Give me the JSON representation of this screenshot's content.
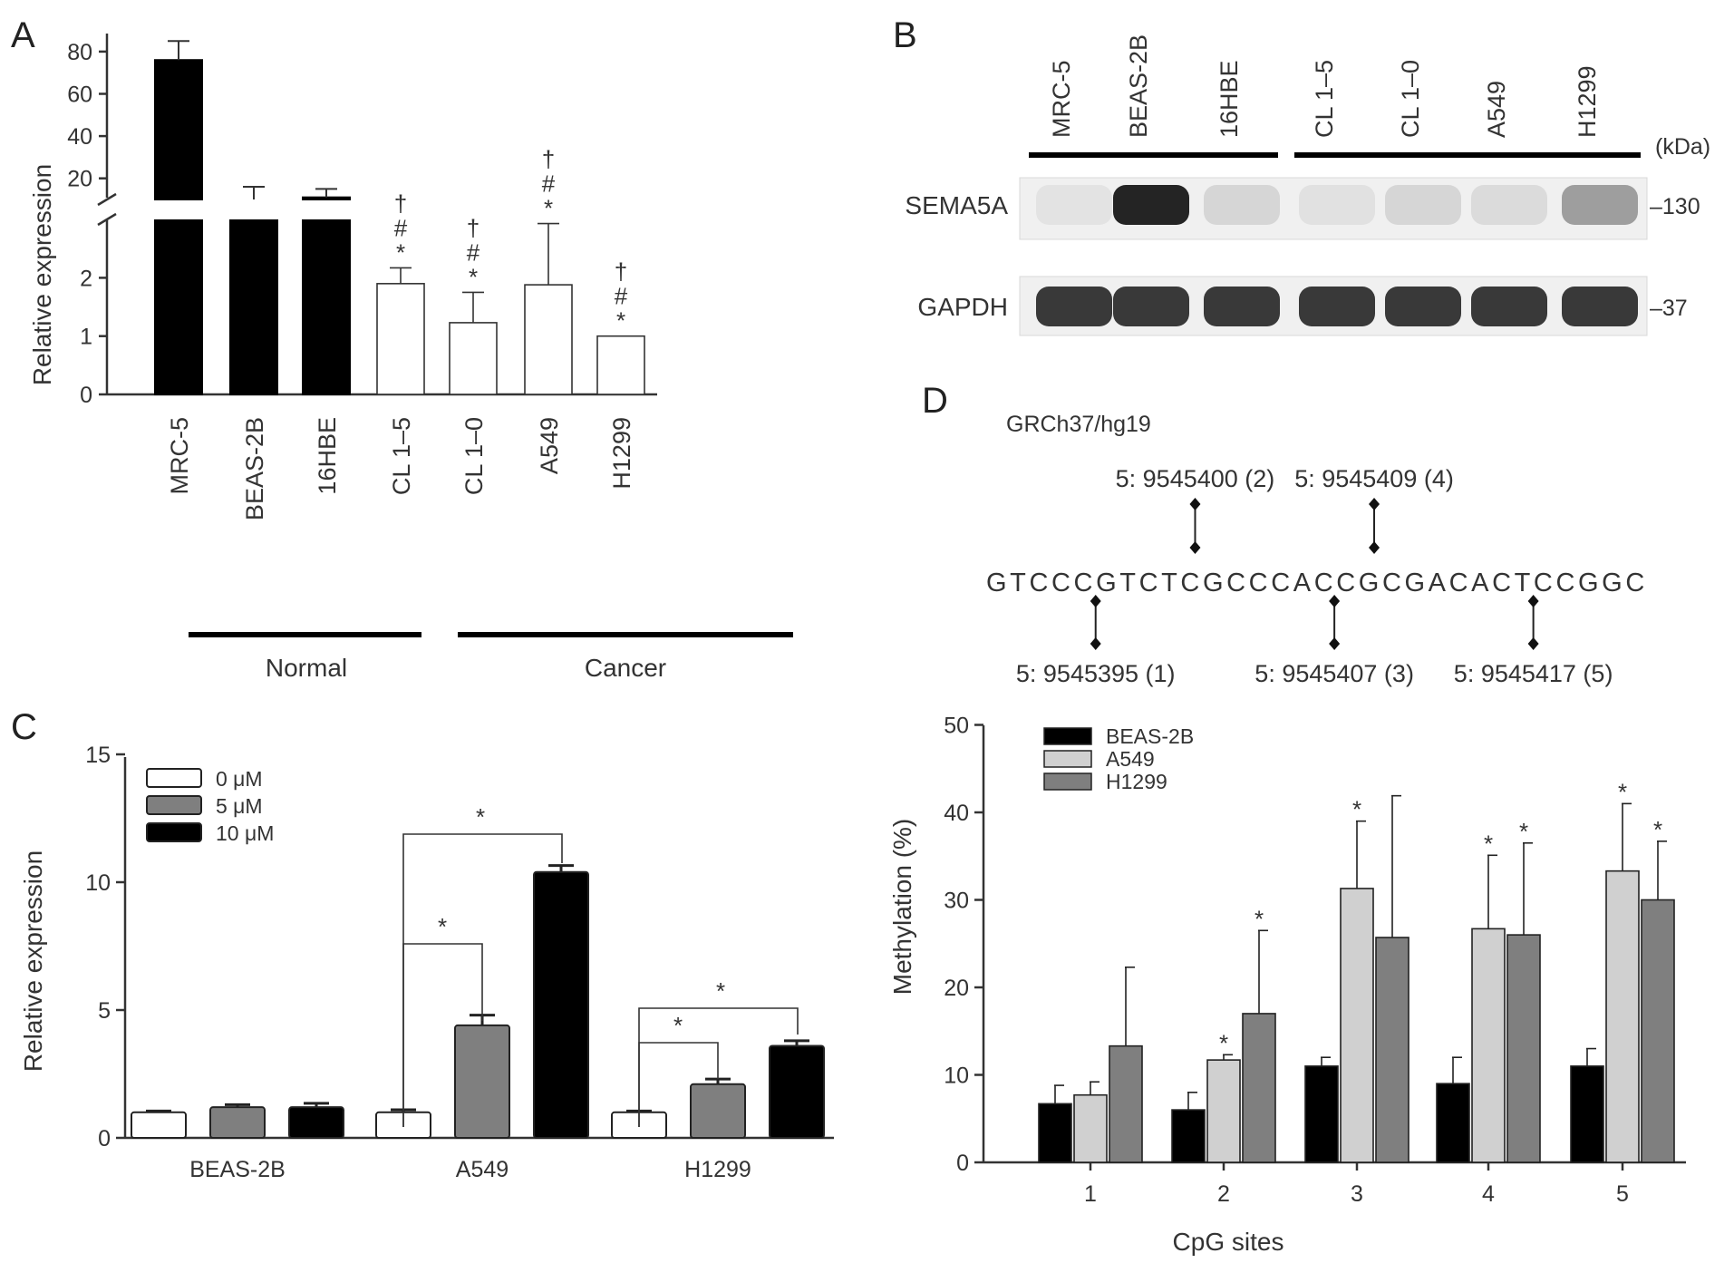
{
  "panels": {
    "A": {
      "letter": "A",
      "ylabel": "Relative expression",
      "upper_ticks": [
        "20",
        "40",
        "60",
        "80"
      ],
      "lower_ticks": [
        "0",
        "1",
        "2"
      ],
      "groups": [
        {
          "label": "Normal"
        },
        {
          "label": "Cancer"
        }
      ],
      "bars": [
        {
          "name": "MRC-5",
          "value": 76,
          "err": 9,
          "fill": "#000000",
          "marks": []
        },
        {
          "name": "BEAS-2B",
          "value": 10,
          "err": 6,
          "fill": "#000000",
          "marks": []
        },
        {
          "name": "16HBE",
          "value": 11,
          "err": 4,
          "fill": "#000000",
          "marks": []
        },
        {
          "name": "CL 1–5",
          "value": 1.9,
          "err": 0.27,
          "fill": "#ffffff",
          "marks": [
            "†",
            "#",
            "*"
          ]
        },
        {
          "name": "CL 1–0",
          "value": 1.23,
          "err": 0.52,
          "fill": "#ffffff",
          "marks": [
            "†",
            "#",
            "*"
          ]
        },
        {
          "name": "A549",
          "value": 1.88,
          "err": 1.05,
          "fill": "#ffffff",
          "marks": [
            "†",
            "#",
            "*"
          ]
        },
        {
          "name": "H1299",
          "value": 1.0,
          "err": 0,
          "fill": "#ffffff",
          "marks": [
            "†",
            "#",
            "*"
          ]
        }
      ]
    },
    "B": {
      "letter": "B",
      "lanes": [
        "MRC-5",
        "BEAS-2B",
        "16HBE",
        "CL 1–5",
        "CL 1–0",
        "A549",
        "H1299"
      ],
      "kda_label": "(kDa)",
      "blots": [
        {
          "name": "SEMA5A",
          "marker": "–130",
          "intensities": [
            0.06,
            0.95,
            0.12,
            0.07,
            0.12,
            0.1,
            0.38
          ]
        },
        {
          "name": "GAPDH",
          "marker": "–37",
          "intensities": [
            0.85,
            0.85,
            0.85,
            0.85,
            0.85,
            0.85,
            0.85
          ]
        }
      ]
    },
    "C": {
      "letter": "C",
      "ylabel": "Relative expression",
      "ticks": [
        "0",
        "5",
        "10",
        "15"
      ],
      "sig": "*",
      "legend": [
        {
          "label": "0 μM",
          "color": "#ffffff"
        },
        {
          "label": "5 μM",
          "color": "#7f7f7f"
        },
        {
          "label": "10 μM",
          "color": "#000000"
        }
      ]
    },
    "D": {
      "letter": "D",
      "assembly": "GRCh37/hg19",
      "sequence": "GTCCCGTCTCGCCCACCGCGACACTCCGGC",
      "sites_top": [
        {
          "label": "5: 9545400 (2)",
          "idx": 10
        },
        {
          "label": "5: 9545409 (4)",
          "idx": 19
        }
      ],
      "sites_bottom": [
        {
          "label": "5: 9545395 (1)",
          "idx": 5
        },
        {
          "label": "5: 9545407 (3)",
          "idx": 17
        },
        {
          "label": "5: 9545417 (5)",
          "idx": 27
        }
      ],
      "ylabel": "Methylation (%)",
      "xlabel": "CpG sites",
      "ticks": [
        "0",
        "10",
        "20",
        "30",
        "40",
        "50"
      ],
      "sig": "*",
      "legend": [
        {
          "label": "BEAS-2B",
          "color": "#000000"
        },
        {
          "label": "A549",
          "color": "#d0d0d0"
        },
        {
          "label": "H1299",
          "color": "#7f7f7f"
        }
      ]
    }
  },
  "chart_data": [
    {
      "type": "bar",
      "panel": "A",
      "categories": [
        "MRC-5",
        "BEAS-2B",
        "16HBE",
        "CL 1–5",
        "CL 1–0",
        "A549",
        "H1299"
      ],
      "values": [
        76,
        10,
        11,
        1.9,
        1.23,
        1.88,
        1.0
      ],
      "errors": [
        9,
        6,
        4,
        0.27,
        0.52,
        1.05,
        0
      ],
      "ylabel": "Relative expression",
      "axis_break": true,
      "ylim_lower": [
        0,
        2.5
      ],
      "ylim_upper": [
        10,
        80
      ]
    },
    {
      "type": "bar",
      "panel": "C",
      "categories": [
        "BEAS-2B",
        "A549",
        "H1299"
      ],
      "series": [
        {
          "name": "0 μM",
          "values": [
            1.0,
            1.0,
            1.0
          ],
          "errors": [
            0.05,
            0.1,
            0.05
          ]
        },
        {
          "name": "5 μM",
          "values": [
            1.2,
            4.4,
            2.1
          ],
          "errors": [
            0.1,
            0.4,
            0.2
          ]
        },
        {
          "name": "10 μM",
          "values": [
            1.2,
            10.4,
            3.6
          ],
          "errors": [
            0.15,
            0.25,
            0.2
          ]
        }
      ],
      "ylabel": "Relative expression",
      "ylim": [
        0,
        15
      ]
    },
    {
      "type": "bar",
      "panel": "D",
      "categories": [
        "1",
        "2",
        "3",
        "4",
        "5"
      ],
      "series": [
        {
          "name": "BEAS-2B",
          "values": [
            6.7,
            6.0,
            11.0,
            9.0,
            11.0
          ],
          "errors": [
            2.1,
            2.0,
            1.0,
            3.0,
            2.0
          ]
        },
        {
          "name": "A549",
          "values": [
            7.7,
            11.7,
            31.3,
            26.7,
            33.3
          ],
          "errors": [
            1.5,
            0.6,
            7.7,
            8.4,
            7.7
          ]
        },
        {
          "name": "H1299",
          "values": [
            13.3,
            17.0,
            25.7,
            26.0,
            30.0
          ],
          "errors": [
            9.0,
            9.5,
            16.2,
            10.5,
            6.7
          ]
        }
      ],
      "significant": [
        [],
        [
          "A549",
          "H1299"
        ],
        [
          "A549"
        ],
        [
          "A549",
          "H1299"
        ],
        [
          "A549",
          "H1299"
        ]
      ],
      "xlabel": "CpG sites",
      "ylabel": "Methylation (%)",
      "ylim": [
        0,
        50
      ]
    }
  ]
}
